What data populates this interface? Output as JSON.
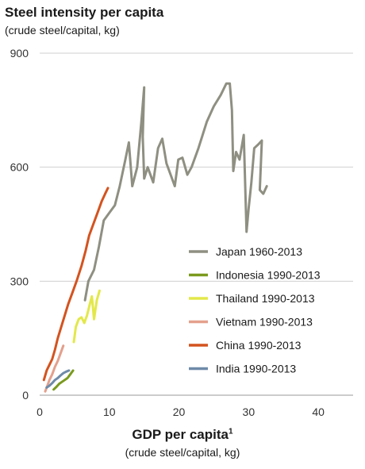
{
  "chart_data": {
    "type": "line",
    "title": "Steel intensity per capita",
    "subtitle": "(crude steel/capital, kg)",
    "xlabel": "GDP per capita",
    "xlabel_sup": "1",
    "xlabel_sub": "(crude steel/capital, kg)",
    "xlim": [
      0,
      45
    ],
    "ylim": [
      0,
      900
    ],
    "xticks": [
      0,
      10,
      20,
      30,
      40
    ],
    "yticks": [
      0,
      300,
      600,
      900
    ],
    "grid": "horizontal",
    "legend_position": "right",
    "series": [
      {
        "name": "Japan 1960-2013",
        "color": "#8f8f82",
        "points": [
          [
            6.5,
            250
          ],
          [
            7.0,
            300
          ],
          [
            7.8,
            330
          ],
          [
            8.5,
            390
          ],
          [
            9.2,
            460
          ],
          [
            10.0,
            480
          ],
          [
            10.8,
            500
          ],
          [
            11.5,
            550
          ],
          [
            12.3,
            620
          ],
          [
            12.8,
            665
          ],
          [
            13.3,
            550
          ],
          [
            14.0,
            600
          ],
          [
            14.6,
            720
          ],
          [
            15.0,
            810
          ],
          [
            14.8,
            680
          ],
          [
            15.0,
            570
          ],
          [
            15.5,
            600
          ],
          [
            16.3,
            560
          ],
          [
            17.0,
            650
          ],
          [
            17.6,
            675
          ],
          [
            18.2,
            610
          ],
          [
            19.0,
            570
          ],
          [
            19.4,
            550
          ],
          [
            19.9,
            620
          ],
          [
            20.5,
            625
          ],
          [
            21.2,
            580
          ],
          [
            21.8,
            600
          ],
          [
            22.8,
            650
          ],
          [
            24.0,
            720
          ],
          [
            25.0,
            760
          ],
          [
            26.0,
            790
          ],
          [
            26.8,
            820
          ],
          [
            27.3,
            820
          ],
          [
            27.6,
            750
          ],
          [
            27.8,
            590
          ],
          [
            28.2,
            640
          ],
          [
            28.7,
            620
          ],
          [
            29.3,
            685
          ],
          [
            29.7,
            430
          ],
          [
            30.0,
            490
          ],
          [
            30.4,
            560
          ],
          [
            30.8,
            650
          ],
          [
            31.4,
            660
          ],
          [
            31.9,
            670
          ],
          [
            31.6,
            540
          ],
          [
            32.1,
            530
          ],
          [
            32.6,
            550
          ]
        ]
      },
      {
        "name": "Indonesia 1990-2013",
        "color": "#7a9a1e",
        "points": [
          [
            2.0,
            15
          ],
          [
            2.4,
            22
          ],
          [
            2.8,
            30
          ],
          [
            3.2,
            35
          ],
          [
            3.6,
            40
          ],
          [
            4.0,
            45
          ],
          [
            4.4,
            55
          ],
          [
            4.8,
            65
          ]
        ]
      },
      {
        "name": "Thailand 1990-2013",
        "color": "#e3e84a",
        "points": [
          [
            4.9,
            140
          ],
          [
            5.2,
            180
          ],
          [
            5.6,
            200
          ],
          [
            6.0,
            205
          ],
          [
            6.4,
            190
          ],
          [
            6.8,
            210
          ],
          [
            7.2,
            240
          ],
          [
            7.5,
            260
          ],
          [
            7.8,
            200
          ],
          [
            8.2,
            250
          ],
          [
            8.6,
            275
          ]
        ]
      },
      {
        "name": "Vietnam 1990-2013",
        "color": "#e3a08c",
        "points": [
          [
            0.8,
            10
          ],
          [
            1.1,
            25
          ],
          [
            1.4,
            40
          ],
          [
            1.8,
            55
          ],
          [
            2.2,
            75
          ],
          [
            2.6,
            90
          ],
          [
            3.0,
            110
          ],
          [
            3.4,
            130
          ]
        ]
      },
      {
        "name": "China 1990-2013",
        "color": "#d4531f",
        "points": [
          [
            0.6,
            40
          ],
          [
            1.0,
            65
          ],
          [
            1.4,
            80
          ],
          [
            1.8,
            95
          ],
          [
            2.2,
            120
          ],
          [
            2.6,
            150
          ],
          [
            3.1,
            180
          ],
          [
            3.6,
            210
          ],
          [
            4.1,
            240
          ],
          [
            4.7,
            270
          ],
          [
            5.3,
            300
          ],
          [
            6.0,
            340
          ],
          [
            6.6,
            380
          ],
          [
            7.1,
            420
          ],
          [
            7.7,
            450
          ],
          [
            8.3,
            480
          ],
          [
            8.9,
            510
          ],
          [
            9.4,
            530
          ],
          [
            9.8,
            545
          ]
        ]
      },
      {
        "name": "India 1990-2013",
        "color": "#6e8aa8",
        "points": [
          [
            1.0,
            20
          ],
          [
            1.4,
            25
          ],
          [
            1.8,
            32
          ],
          [
            2.2,
            40
          ],
          [
            2.6,
            45
          ],
          [
            3.0,
            52
          ],
          [
            3.4,
            58
          ],
          [
            3.8,
            62
          ],
          [
            4.2,
            65
          ]
        ]
      }
    ]
  }
}
